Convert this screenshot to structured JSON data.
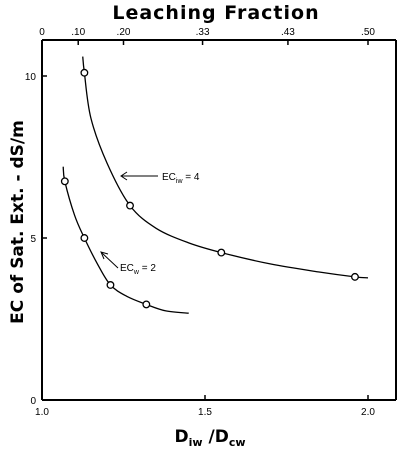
{
  "chart_data": {
    "type": "line",
    "title": "Leaching Fraction",
    "xlabel": {
      "main": "D",
      "sub1": "iw",
      "mid": " /D",
      "sub2": "cw"
    },
    "ylabel": "EC of Sat. Ext. - dS/m",
    "xlim": [
      1.0,
      2.1
    ],
    "ylim": [
      0,
      10.6
    ],
    "x_ticks": [
      1.0,
      1.5,
      2.0
    ],
    "x_tick_labels": [
      "1.0",
      "1.5",
      "2.0"
    ],
    "y_ticks": [
      0,
      5,
      10
    ],
    "y_tick_labels": [
      "0",
      "5",
      "10"
    ],
    "top_ticks": [
      {
        "label": "0",
        "value": 0.0
      },
      {
        "label": ".10",
        "value": 0.1
      },
      {
        "label": ".20",
        "value": 0.2
      },
      {
        "label": ".33",
        "value": 0.33
      },
      {
        "label": ".43",
        "value": 0.43
      },
      {
        "label": ".50",
        "value": 0.5
      }
    ],
    "grid": false,
    "series": [
      {
        "name": "EC iw = 4",
        "annotation": {
          "main": "EC",
          "sub": "iw",
          "rest": " = 4"
        },
        "points": [
          [
            1.13,
            10.1
          ],
          [
            1.27,
            6.0
          ],
          [
            1.55,
            4.55
          ],
          [
            1.96,
            3.8
          ]
        ],
        "curve": [
          [
            1.125,
            10.6
          ],
          [
            1.13,
            10.1
          ],
          [
            1.15,
            8.7
          ],
          [
            1.2,
            7.3
          ],
          [
            1.27,
            6.0
          ],
          [
            1.35,
            5.3
          ],
          [
            1.45,
            4.85
          ],
          [
            1.55,
            4.55
          ],
          [
            1.7,
            4.2
          ],
          [
            1.85,
            3.95
          ],
          [
            1.96,
            3.8
          ],
          [
            2.0,
            3.77
          ]
        ]
      },
      {
        "name": "EC w = 2",
        "annotation": {
          "main": "EC",
          "sub": "w",
          "rest": " = 2"
        },
        "points": [
          [
            1.07,
            6.75
          ],
          [
            1.13,
            5.0
          ],
          [
            1.21,
            3.55
          ],
          [
            1.32,
            2.95
          ]
        ],
        "curve": [
          [
            1.065,
            7.2
          ],
          [
            1.07,
            6.75
          ],
          [
            1.1,
            5.7
          ],
          [
            1.13,
            5.0
          ],
          [
            1.17,
            4.2
          ],
          [
            1.21,
            3.55
          ],
          [
            1.26,
            3.2
          ],
          [
            1.32,
            2.95
          ],
          [
            1.38,
            2.75
          ],
          [
            1.45,
            2.68
          ]
        ]
      }
    ]
  }
}
